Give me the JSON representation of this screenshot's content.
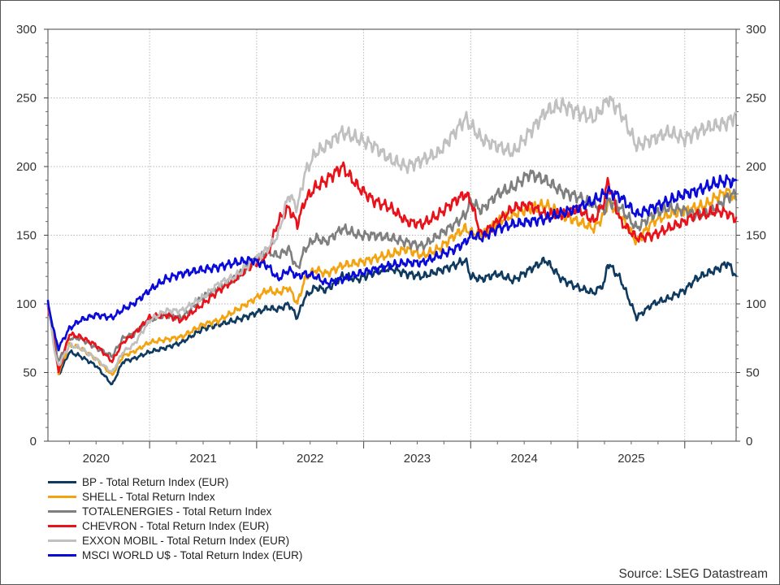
{
  "chart_data": {
    "type": "line",
    "title": "",
    "xlabel": "",
    "ylabel": "",
    "source": "Source: LSEG Datastream",
    "ylim": [
      0,
      300
    ],
    "yticks": [
      0,
      50,
      100,
      150,
      200,
      250,
      300
    ],
    "xlim": [
      2019.55,
      2025.98
    ],
    "year_labels": [
      {
        "label": "2020",
        "x": 2020.0
      },
      {
        "label": "2021",
        "x": 2021.0
      },
      {
        "label": "2022",
        "x": 2022.0
      },
      {
        "label": "2023",
        "x": 2023.0
      },
      {
        "label": "2024",
        "x": 2024.0
      },
      {
        "label": "2025",
        "x": 2025.0
      }
    ],
    "year_boundaries": [
      2019.5,
      2020.5,
      2021.5,
      2022.5,
      2023.5,
      2024.5,
      2025.5
    ],
    "x": [
      2019.55,
      2019.62,
      2019.65,
      2019.75,
      2019.85,
      2020.0,
      2020.15,
      2020.25,
      2020.35,
      2020.5,
      2020.65,
      2020.8,
      2021.0,
      2021.15,
      2021.3,
      2021.45,
      2021.6,
      2021.7,
      2021.8,
      2021.88,
      2021.95,
      2022.05,
      2022.15,
      2022.3,
      2022.45,
      2022.6,
      2022.75,
      2022.9,
      2023.05,
      2023.2,
      2023.35,
      2023.45,
      2023.5,
      2023.6,
      2023.75,
      2023.9,
      2024.05,
      2024.2,
      2024.35,
      2024.5,
      2024.65,
      2024.75,
      2024.78,
      2024.9,
      2025.05,
      2025.2,
      2025.35,
      2025.5,
      2025.6,
      2025.7,
      2025.8,
      2025.9,
      2025.98
    ],
    "series": [
      {
        "name": "BP - Total Return Index (EUR)",
        "color": "#0f3a5f",
        "values": [
          100,
          72,
          48,
          65,
          62,
          55,
          41,
          58,
          60,
          65,
          68,
          72,
          82,
          85,
          88,
          92,
          97,
          96,
          100,
          90,
          105,
          112,
          110,
          120,
          118,
          123,
          126,
          122,
          120,
          124,
          128,
          132,
          120,
          118,
          122,
          117,
          125,
          132,
          118,
          112,
          108,
          115,
          130,
          118,
          90,
          100,
          104,
          110,
          118,
          122,
          125,
          130,
          120
        ]
      },
      {
        "name": "SHELL - Total Return Index",
        "color": "#f2a30f",
        "values": [
          100,
          65,
          50,
          70,
          68,
          60,
          48,
          62,
          65,
          72,
          74,
          76,
          85,
          88,
          95,
          102,
          110,
          108,
          112,
          100,
          118,
          125,
          122,
          128,
          130,
          133,
          136,
          140,
          135,
          140,
          150,
          155,
          152,
          150,
          160,
          165,
          170,
          172,
          165,
          160,
          155,
          165,
          175,
          165,
          145,
          160,
          165,
          168,
          170,
          172,
          178,
          182,
          175
        ]
      },
      {
        "name": "TOTALENERGIES - Total Return Index",
        "color": "#7f7f7f",
        "values": [
          100,
          68,
          58,
          75,
          75,
          68,
          62,
          75,
          78,
          88,
          92,
          90,
          105,
          112,
          118,
          130,
          138,
          135,
          140,
          125,
          140,
          148,
          145,
          155,
          150,
          150,
          148,
          145,
          142,
          150,
          158,
          165,
          175,
          168,
          180,
          185,
          195,
          190,
          182,
          178,
          172,
          168,
          175,
          170,
          155,
          165,
          170,
          168,
          165,
          166,
          170,
          178,
          180
        ]
      },
      {
        "name": "CHEVRON - Total Return Index (EUR)",
        "color": "#e8121a",
        "values": [
          100,
          65,
          50,
          78,
          76,
          70,
          58,
          72,
          78,
          90,
          92,
          88,
          100,
          110,
          118,
          128,
          135,
          160,
          170,
          158,
          175,
          185,
          190,
          200,
          185,
          175,
          170,
          160,
          158,
          165,
          175,
          180,
          175,
          150,
          160,
          170,
          172,
          165,
          165,
          170,
          160,
          175,
          190,
          160,
          148,
          150,
          155,
          160,
          165,
          165,
          168,
          166,
          162
        ]
      },
      {
        "name": "EXXON MOBIL - Total Return Index (EUR)",
        "color": "#c0c0c0",
        "values": [
          100,
          62,
          55,
          70,
          68,
          60,
          50,
          65,
          70,
          88,
          95,
          95,
          105,
          115,
          120,
          130,
          140,
          150,
          180,
          170,
          195,
          210,
          215,
          225,
          220,
          215,
          205,
          200,
          205,
          210,
          225,
          235,
          230,
          220,
          215,
          210,
          225,
          240,
          245,
          240,
          235,
          245,
          250,
          240,
          215,
          220,
          225,
          220,
          225,
          228,
          230,
          232,
          238
        ]
      },
      {
        "name": "MSCI WORLD U$ - Total Return Index (EUR)",
        "color": "#0a0ad8",
        "values": [
          100,
          75,
          68,
          82,
          88,
          92,
          90,
          96,
          100,
          110,
          118,
          122,
          125,
          127,
          130,
          132,
          128,
          118,
          125,
          120,
          122,
          120,
          115,
          118,
          122,
          125,
          128,
          130,
          130,
          135,
          140,
          145,
          150,
          148,
          155,
          158,
          160,
          162,
          166,
          170,
          175,
          180,
          182,
          178,
          165,
          170,
          175,
          180,
          182,
          185,
          188,
          190,
          188
        ]
      }
    ]
  }
}
